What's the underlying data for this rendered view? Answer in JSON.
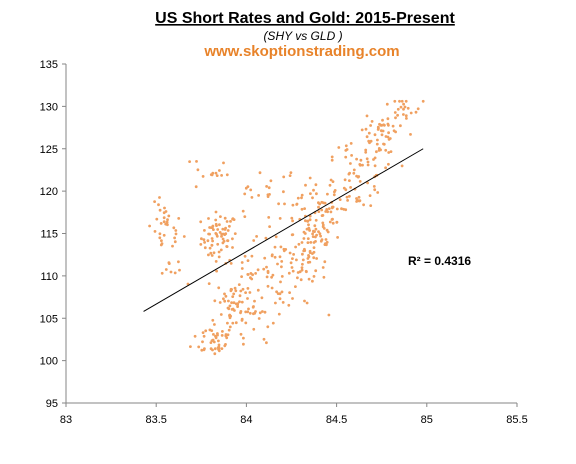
{
  "chart_data": {
    "type": "scatter",
    "title": "US Short Rates and Gold: 2015-Present",
    "subtitle": "(SHY vs GLD )",
    "watermark": "www.skoptionstrading.com",
    "xlabel": "",
    "ylabel": "",
    "xlim": [
      83,
      85.5
    ],
    "ylim": [
      95,
      135
    ],
    "xticks": [
      "83",
      "83.5",
      "84",
      "84.5",
      "85",
      "85.5"
    ],
    "yticks": [
      "95",
      "100",
      "105",
      "110",
      "115",
      "120",
      "125",
      "130",
      "135"
    ],
    "grid": false,
    "legend": "none",
    "point_color": "#f0a060",
    "watermark_color": "#e8832a",
    "trendline": {
      "x": [
        83.43,
        84.98
      ],
      "y": [
        105.8,
        125.0
      ],
      "color": "#000000"
    },
    "r_squared_label": "R² = 0.4316",
    "clusters": [
      {
        "cx": 83.85,
        "cy": 114.5,
        "sx": 0.05,
        "sy": 1.5,
        "n": 70
      },
      {
        "cx": 83.55,
        "cy": 115.5,
        "sx": 0.05,
        "sy": 1.5,
        "n": 32
      },
      {
        "cx": 83.59,
        "cy": 111.2,
        "sx": 0.03,
        "sy": 0.6,
        "n": 8
      },
      {
        "cx": 83.8,
        "cy": 122.2,
        "sx": 0.05,
        "sy": 1.2,
        "n": 14
      },
      {
        "cx": 83.82,
        "cy": 102.5,
        "sx": 0.06,
        "sy": 1.0,
        "n": 40
      },
      {
        "cx": 83.92,
        "cy": 106.5,
        "sx": 0.07,
        "sy": 2.2,
        "n": 55
      },
      {
        "cx": 84.02,
        "cy": 108.0,
        "sx": 0.06,
        "sy": 2.5,
        "n": 40
      },
      {
        "cx": 84.18,
        "cy": 111.0,
        "sx": 0.08,
        "sy": 2.5,
        "n": 45
      },
      {
        "cx": 84.3,
        "cy": 110.5,
        "sx": 0.07,
        "sy": 2.0,
        "n": 40
      },
      {
        "cx": 84.38,
        "cy": 115.0,
        "sx": 0.06,
        "sy": 2.0,
        "n": 55
      },
      {
        "cx": 84.3,
        "cy": 119.0,
        "sx": 0.12,
        "sy": 1.5,
        "n": 30
      },
      {
        "cx": 84.05,
        "cy": 118.5,
        "sx": 0.08,
        "sy": 1.5,
        "n": 12
      },
      {
        "cx": 84.48,
        "cy": 117.5,
        "sx": 0.06,
        "sy": 2.0,
        "n": 30
      },
      {
        "cx": 84.62,
        "cy": 121.0,
        "sx": 0.07,
        "sy": 1.5,
        "n": 40
      },
      {
        "cx": 84.72,
        "cy": 125.5,
        "sx": 0.06,
        "sy": 1.5,
        "n": 40
      },
      {
        "cx": 84.76,
        "cy": 127.5,
        "sx": 0.04,
        "sy": 0.5,
        "n": 18
      },
      {
        "cx": 84.85,
        "cy": 129.5,
        "sx": 0.07,
        "sy": 0.8,
        "n": 22
      },
      {
        "cx": 84.58,
        "cy": 124.0,
        "sx": 0.05,
        "sy": 1.0,
        "n": 12
      }
    ]
  }
}
